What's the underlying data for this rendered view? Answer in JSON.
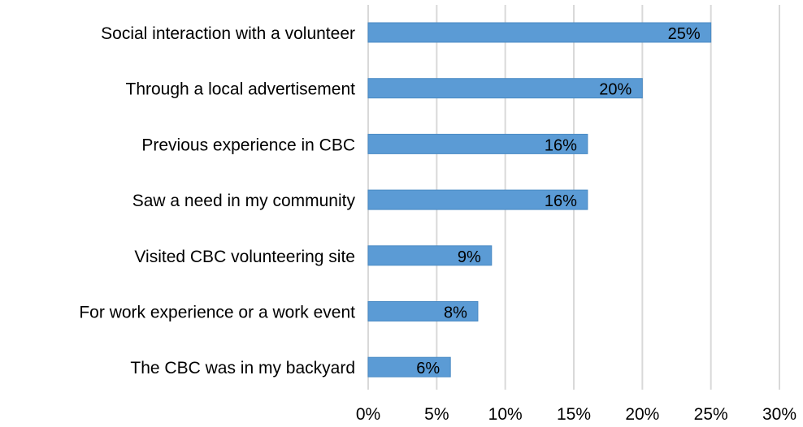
{
  "chart_data": {
    "type": "bar",
    "orientation": "horizontal",
    "categories": [
      "Social interaction with a volunteer",
      "Through a local advertisement",
      "Previous experience in CBC",
      "Saw a need in my community",
      "Visited CBC volunteering site",
      "For work experience or a work event",
      "The CBC was in my backyard"
    ],
    "values": [
      25,
      20,
      16,
      16,
      9,
      8,
      6
    ],
    "data_labels": [
      "25%",
      "20%",
      "16%",
      "16%",
      "9%",
      "8%",
      "6%"
    ],
    "xlim": [
      0,
      30
    ],
    "x_ticks": [
      0,
      5,
      10,
      15,
      20,
      25,
      30
    ],
    "x_tick_labels": [
      "0%",
      "5%",
      "10%",
      "15%",
      "20%",
      "25%",
      "30%"
    ],
    "grid": "vertical",
    "legend": "none",
    "bar_color": "#5b9bd5",
    "gridline_color": "#d9d9d9"
  }
}
